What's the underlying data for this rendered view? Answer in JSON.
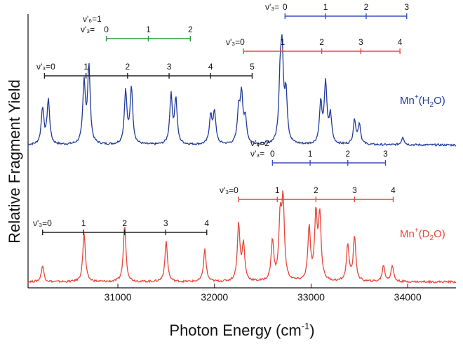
{
  "chart_data": {
    "type": "line",
    "xlabel": "Photon Energy (cm",
    "xlabel_sup": "-1",
    "xlabel_end": ")",
    "ylabel": "Relative Fragment Yield",
    "xlim": [
      30070,
      34500
    ],
    "x_ticks": [
      31000,
      32000,
      33000,
      34000
    ],
    "x_tick_labels": [
      "31000",
      "32000",
      "33000",
      "34000"
    ],
    "series": [
      {
        "name": "Mn+(H2O)",
        "label_main": "Mn",
        "label_sup": "+",
        "label_mid": "(H",
        "label_sub": "2",
        "label_end": "O)",
        "color": "#1f3a9c",
        "peaks": [
          [
            30220,
            0.45
          ],
          [
            30280,
            0.55
          ],
          [
            30650,
            0.75
          ],
          [
            30700,
            0.95
          ],
          [
            31080,
            0.65
          ],
          [
            31140,
            0.7
          ],
          [
            31550,
            0.6
          ],
          [
            31600,
            0.55
          ],
          [
            31960,
            0.35
          ],
          [
            32000,
            0.4
          ],
          [
            32250,
            0.4
          ],
          [
            32280,
            0.6
          ],
          [
            32320,
            0.3
          ],
          [
            32680,
            0.7
          ],
          [
            32700,
            1.0
          ],
          [
            32740,
            0.6
          ],
          [
            33100,
            0.5
          ],
          [
            33150,
            0.75
          ],
          [
            33200,
            0.35
          ],
          [
            33450,
            0.3
          ],
          [
            33500,
            0.25
          ],
          [
            33950,
            0.1
          ]
        ]
      },
      {
        "name": "Mn+(D2O)",
        "label_main": "Mn",
        "label_sup": "+",
        "label_mid": "(D",
        "label_sub": "2",
        "label_end": "O)",
        "color": "#e8463a",
        "peaks": [
          [
            30220,
            0.2
          ],
          [
            30650,
            0.6
          ],
          [
            31070,
            0.7
          ],
          [
            31500,
            0.5
          ],
          [
            31900,
            0.4
          ],
          [
            32250,
            0.7
          ],
          [
            32300,
            0.45
          ],
          [
            32600,
            0.5
          ],
          [
            32680,
            0.75
          ],
          [
            32710,
            0.95
          ],
          [
            32980,
            0.65
          ],
          [
            33050,
            0.8
          ],
          [
            33090,
            0.8
          ],
          [
            33380,
            0.45
          ],
          [
            33450,
            0.55
          ],
          [
            33750,
            0.2
          ],
          [
            33840,
            0.2
          ]
        ]
      }
    ],
    "progressions": [
      {
        "label": "ν'₆=1",
        "sub_label": "ν'₃=",
        "color": "#2a9a3a",
        "start": 30880,
        "spacing": 435,
        "count": 2,
        "tick_labels": [
          "0",
          "1",
          "2"
        ]
      },
      {
        "label": "ν'₄=2",
        "sub_label": "ν'₃=",
        "color": "#3a4fc4",
        "start": 32730,
        "spacing": 420,
        "count": 3,
        "tick_labels": [
          "0",
          "1",
          "2",
          "3"
        ]
      },
      {
        "label": "",
        "sub_label": "ν'₃=0",
        "color": "#e8463a",
        "start": 32300,
        "spacing": 405,
        "count": 4,
        "tick_labels": [
          "",
          "1",
          "2",
          "3",
          "4"
        ]
      },
      {
        "label": "",
        "sub_label": "ν'₃=0",
        "color": "#222222",
        "start": 30240,
        "spacing": 430,
        "count": 5,
        "tick_labels": [
          "",
          "1",
          "2",
          "3",
          "4",
          "5"
        ]
      },
      {
        "label": "ν'₄=2",
        "sub_label": "ν'₃=",
        "color": "#3a4fc4",
        "start": 32600,
        "spacing": 390,
        "count": 3,
        "tick_labels": [
          "0",
          "1",
          "2",
          "3"
        ]
      },
      {
        "label": "",
        "sub_label": "ν'₃=0",
        "color": "#e8463a",
        "start": 32250,
        "spacing": 400,
        "count": 4,
        "tick_labels": [
          "",
          "1",
          "2",
          "3",
          "4"
        ]
      },
      {
        "label": "",
        "sub_label": "ν'₃=0",
        "color": "#222222",
        "start": 30220,
        "spacing": 425,
        "count": 4,
        "tick_labels": [
          "",
          "1",
          "2",
          "3",
          "4"
        ]
      }
    ],
    "grid": false
  }
}
